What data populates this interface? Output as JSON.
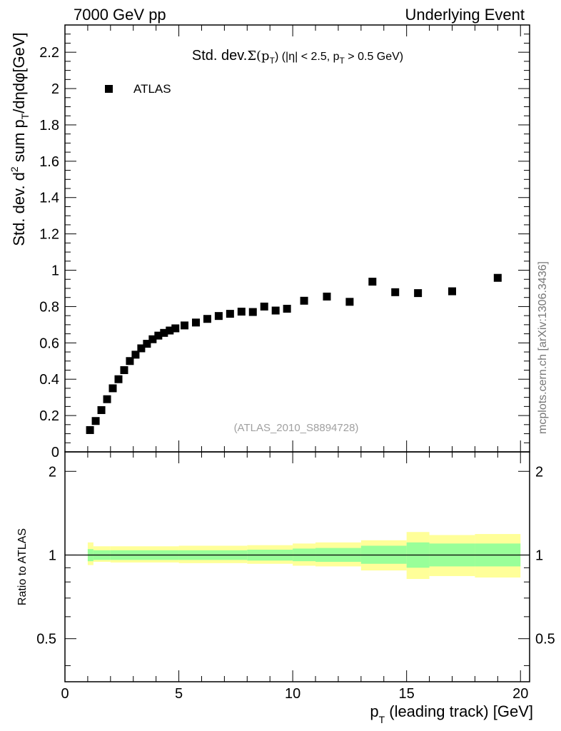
{
  "header": {
    "left": "7000 GeV pp",
    "right": "Underlying Event"
  },
  "side_label": "mcplots.cern.ch [arXiv:1306.3436]",
  "colors": {
    "data_marker": "#000000",
    "band_inner": "#99ff99",
    "band_outer": "#ffff99",
    "watermark": "#a0a0a0",
    "side_label": "#777777"
  },
  "chart_data": [
    {
      "type": "scatter",
      "panel": "main",
      "title": "Std. dev. Σ(pT) (|η| < 2.5, pT > 0.5 GeV)",
      "title_parts": {
        "main": "Std. dev.",
        "sigma": "Σ(p",
        "sigma_sub": "T",
        "close": ")",
        "cut1": " (|η| < 2.5, p",
        "cut1_sub": "T",
        "cut2": " > 0.5 GeV)"
      },
      "ylabel": "Std. dev. d² sum pT/dηdφ[GeV]",
      "ylabel_parts": {
        "a": "Std. dev. d",
        "sup": "2",
        "b": " sum p",
        "sub": "T",
        "c": "/dηdφ[GeV]"
      },
      "xlim": [
        0,
        20.4
      ],
      "ylim": [
        0,
        2.35
      ],
      "yticks": [
        0,
        0.2,
        0.4,
        0.6,
        0.8,
        1,
        1.2,
        1.4,
        1.6,
        1.8,
        2,
        2.2
      ],
      "ytick_labels": [
        "0",
        "0.2",
        "0.4",
        "0.6",
        "0.8",
        "1",
        "1.2",
        "1.4",
        "1.6",
        "1.8",
        "2",
        "2.2"
      ],
      "legend": {
        "label": "ATLAS",
        "position": "top-left"
      },
      "watermark": "(ATLAS_2010_S8894728)",
      "series": [
        {
          "name": "ATLAS",
          "x": [
            1.1,
            1.35,
            1.6,
            1.85,
            2.1,
            2.35,
            2.6,
            2.85,
            3.1,
            3.35,
            3.6,
            3.85,
            4.1,
            4.35,
            4.6,
            4.85,
            5.25,
            5.75,
            6.25,
            6.75,
            7.25,
            7.75,
            8.25,
            8.75,
            9.25,
            9.75,
            10.5,
            11.5,
            12.5,
            13.5,
            14.5,
            15.5,
            17.0,
            19.0
          ],
          "y": [
            0.12,
            0.17,
            0.23,
            0.29,
            0.35,
            0.4,
            0.45,
            0.5,
            0.535,
            0.57,
            0.595,
            0.62,
            0.64,
            0.655,
            0.668,
            0.68,
            0.696,
            0.712,
            0.732,
            0.748,
            0.76,
            0.772,
            0.77,
            0.8,
            0.778,
            0.788,
            0.832,
            0.855,
            0.826,
            0.937,
            0.879,
            0.874,
            0.884,
            0.958
          ]
        }
      ]
    },
    {
      "type": "area",
      "panel": "ratio",
      "ylabel": "Ratio to ATLAS",
      "xlabel": "pT (leading track) [GeV]",
      "xlabel_parts": {
        "a": "p",
        "sub": "T",
        "b": " (leading track) [GeV]"
      },
      "xlim": [
        0,
        20.4
      ],
      "ylim": [
        0.35,
        2.35
      ],
      "log_y": true,
      "xticks": [
        0,
        5,
        10,
        15,
        20
      ],
      "xtick_labels": [
        "0",
        "5",
        "10",
        "15",
        "20"
      ],
      "yticks": [
        0.5,
        1,
        2
      ],
      "ytick_labels": [
        "0.5",
        "1",
        "2"
      ],
      "reference_line": 1,
      "bins": [
        {
          "lo": 1.0,
          "hi": 1.25,
          "inner": [
            0.95,
            1.05
          ],
          "outer": [
            0.92,
            1.11
          ]
        },
        {
          "lo": 1.25,
          "hi": 2.0,
          "inner": [
            0.96,
            1.04
          ],
          "outer": [
            0.945,
            1.075
          ]
        },
        {
          "lo": 2.0,
          "hi": 5.0,
          "inner": [
            0.96,
            1.04
          ],
          "outer": [
            0.94,
            1.075
          ]
        },
        {
          "lo": 5.0,
          "hi": 8.0,
          "inner": [
            0.96,
            1.04
          ],
          "outer": [
            0.935,
            1.08
          ]
        },
        {
          "lo": 8.0,
          "hi": 10.0,
          "inner": [
            0.955,
            1.045
          ],
          "outer": [
            0.93,
            1.085
          ]
        },
        {
          "lo": 10.0,
          "hi": 11.0,
          "inner": [
            0.95,
            1.055
          ],
          "outer": [
            0.915,
            1.1
          ]
        },
        {
          "lo": 11.0,
          "hi": 13.0,
          "inner": [
            0.945,
            1.06
          ],
          "outer": [
            0.91,
            1.11
          ]
        },
        {
          "lo": 13.0,
          "hi": 15.0,
          "inner": [
            0.93,
            1.08
          ],
          "outer": [
            0.88,
            1.13
          ]
        },
        {
          "lo": 15.0,
          "hi": 16.0,
          "inner": [
            0.9,
            1.11
          ],
          "outer": [
            0.82,
            1.21
          ]
        },
        {
          "lo": 16.0,
          "hi": 18.0,
          "inner": [
            0.91,
            1.1
          ],
          "outer": [
            0.84,
            1.18
          ]
        },
        {
          "lo": 18.0,
          "hi": 20.0,
          "inner": [
            0.91,
            1.1
          ],
          "outer": [
            0.83,
            1.19
          ]
        }
      ]
    }
  ]
}
